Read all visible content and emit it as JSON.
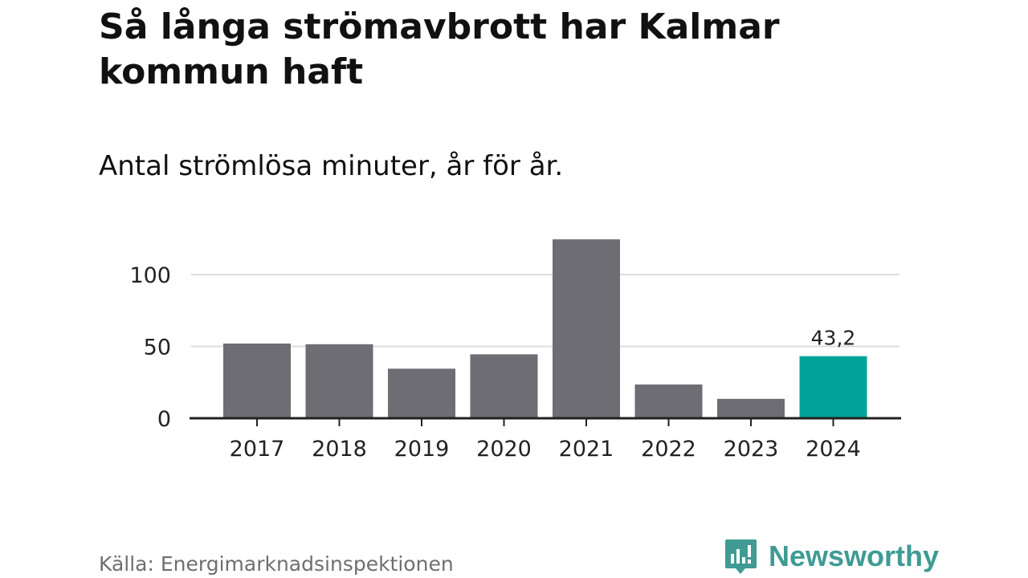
{
  "header": {
    "title": "Så långa strömavbrott har Kalmar kommun haft",
    "subtitle": "Antal strömlösa minuter, år för år."
  },
  "footer": {
    "source": "Källa: Energimarknadsinspektionen",
    "brand": "Newsworthy",
    "brand_color": "#3f9b94"
  },
  "colors": {
    "bar": "#6e6d73",
    "highlight": "#00a398",
    "grid": "#dcdcdc",
    "axis": "#222222",
    "text": "#222222"
  },
  "chart_data": {
    "type": "bar",
    "title": "Så långa strömavbrott har Kalmar kommun haft",
    "subtitle": "Antal strömlösa minuter, år för år.",
    "xlabel": "",
    "ylabel": "",
    "categories": [
      "2017",
      "2018",
      "2019",
      "2020",
      "2021",
      "2022",
      "2023",
      "2024"
    ],
    "values": [
      52,
      51.5,
      34.5,
      44.5,
      124.5,
      23.5,
      13.5,
      43.2
    ],
    "highlight_index": 7,
    "data_labels": [
      {
        "index": 7,
        "text": "43,2"
      }
    ],
    "yticks": [
      0,
      50,
      100
    ],
    "ylim": [
      0,
      130
    ],
    "grid": true
  }
}
